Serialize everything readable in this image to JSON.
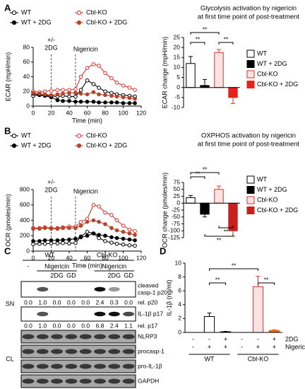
{
  "panel_labels": [
    "A",
    "B",
    "C",
    "D"
  ],
  "chart_data": [
    {
      "type": "line",
      "ylabel": "ECAR (mpH/min)",
      "xlabel": "Time (min)",
      "xlim": [
        0,
        120
      ],
      "xticks": [
        0,
        20,
        40,
        60,
        80,
        100,
        120
      ],
      "ylim": [
        0,
        80
      ],
      "yticks": [
        0,
        20,
        40,
        60,
        80
      ],
      "x": [
        0,
        7,
        13,
        20,
        27,
        33,
        40,
        47,
        53,
        60,
        67,
        73,
        80,
        87,
        93,
        100,
        107,
        113
      ],
      "series": [
        {
          "name": "WT",
          "color": "#000000",
          "marker": "open",
          "values": [
            14,
            15,
            15,
            14,
            13,
            14,
            13,
            13,
            22,
            35,
            30,
            25,
            20,
            18,
            16,
            15,
            14,
            13
          ]
        },
        {
          "name": "WT + 2DG",
          "color": "#000000",
          "marker": "filled",
          "values": [
            17,
            15,
            14,
            12,
            8,
            7,
            7,
            6,
            6,
            6,
            6,
            5,
            5,
            5,
            5,
            4,
            4,
            4
          ]
        },
        {
          "name": "Cbl-KO",
          "color": "#e0312b",
          "marker": "open",
          "values": [
            20,
            19,
            20,
            21,
            22,
            22,
            22,
            23,
            40,
            52,
            57,
            55,
            45,
            38,
            32,
            28,
            25,
            22
          ]
        },
        {
          "name": "Cbl-KO + 2DG",
          "color": "#b5442a",
          "marker": "filled",
          "values": [
            18,
            17,
            16,
            15,
            16,
            17,
            18,
            18,
            17,
            16,
            19,
            16,
            15,
            14,
            13,
            12,
            11,
            10
          ]
        }
      ],
      "annotations": [
        {
          "x": 20,
          "lines": [
            "+/-",
            "2DG"
          ]
        },
        {
          "x": 47,
          "lines": [
            "Nigericin"
          ]
        }
      ]
    },
    {
      "type": "bar",
      "title": [
        "Glycolysis activation by nigericin",
        "at first time point of post-treatment"
      ],
      "ylabel": "ECAR change (mpH/min)",
      "categories": [
        "WT",
        "WT + 2DG",
        "Cbl-KO",
        "Cbl-KO + 2DG"
      ],
      "values": [
        12,
        1,
        17.5,
        -5
      ],
      "errors": [
        3.5,
        3,
        1.5,
        3
      ],
      "colors": [
        "#ffffff",
        "#000000",
        "#fde2e2",
        "#e8221b"
      ],
      "edgecolors": [
        "#000000",
        "#000000",
        "#e0312b",
        "#e8221b"
      ],
      "ylim": [
        -10,
        25
      ],
      "yticks": [
        -10,
        -5,
        0,
        5,
        10,
        15,
        20,
        25
      ],
      "legend": "right",
      "significance": [
        "**",
        "**",
        "**"
      ]
    },
    {
      "type": "line",
      "ylabel": "OCR (pmoles/min)",
      "xlabel": "Time (min)",
      "xlim": [
        0,
        120
      ],
      "xticks": [
        0,
        20,
        40,
        60,
        80,
        100,
        120
      ],
      "ylim": [
        0,
        800
      ],
      "yticks": [
        0,
        200,
        400,
        600,
        800
      ],
      "x": [
        0,
        7,
        13,
        20,
        27,
        33,
        40,
        47,
        53,
        60,
        67,
        73,
        80,
        87,
        93,
        100,
        107,
        113
      ],
      "series": [
        {
          "name": "WT",
          "color": "#000000",
          "marker": "open",
          "values": [
            90,
            95,
            95,
            100,
            100,
            105,
            100,
            105,
            190,
            250,
            230,
            170,
            130,
            110,
            95,
            85,
            75,
            70
          ]
        },
        {
          "name": "WT + 2DG",
          "color": "#000000",
          "marker": "filled",
          "values": [
            130,
            130,
            140,
            140,
            140,
            145,
            150,
            160,
            180,
            200,
            230,
            210,
            200,
            180,
            170,
            160,
            150,
            140
          ]
        },
        {
          "name": "Cbl-KO",
          "color": "#e0312b",
          "marker": "open",
          "values": [
            300,
            300,
            310,
            300,
            300,
            310,
            320,
            320,
            380,
            420,
            600,
            580,
            500,
            470,
            400,
            330,
            280,
            260
          ]
        },
        {
          "name": "Cbl-KO + 2DG",
          "color": "#b5442a",
          "marker": "filled",
          "values": [
            290,
            290,
            300,
            290,
            290,
            300,
            300,
            300,
            330,
            380,
            400,
            380,
            350,
            300,
            270,
            250,
            230,
            210
          ]
        }
      ],
      "annotations": [
        {
          "x": 20,
          "lines": [
            "+/-",
            "2DG"
          ]
        },
        {
          "x": 47,
          "lines": [
            "Nigericin"
          ]
        }
      ]
    },
    {
      "type": "bar",
      "title": [
        "OXPHOS activation by nigericin",
        "at first time point of post-treatment"
      ],
      "ylabel": "OCR change (pmoles/min)",
      "categories": [
        "WT",
        "WT + 2DG",
        "Cbl-KO",
        "Cbl-KO + 2DG"
      ],
      "values": [
        20,
        -40,
        50,
        -100
      ],
      "errors": [
        8,
        10,
        12,
        20
      ],
      "colors": [
        "#ffffff",
        "#000000",
        "#fde2e2",
        "#c8201a"
      ],
      "edgecolors": [
        "#000000",
        "#000000",
        "#e0312b",
        "#c8201a"
      ],
      "ylim": [
        -125,
        75
      ],
      "yticks": [
        -125,
        -100,
        -75,
        -50,
        -25,
        0,
        25,
        50,
        75
      ],
      "legend": "right",
      "significance": [
        "**",
        "**",
        "**",
        "**"
      ]
    },
    {
      "type": "bar",
      "ylabel": "IL-1β (ng/ml)",
      "values": [
        0,
        2.3,
        0.1,
        0,
        6.6,
        0.3
      ],
      "errors": [
        0,
        0.5,
        0.05,
        0,
        1.5,
        0.1
      ],
      "colors": [
        "#ffffff",
        "#ffffff",
        "#000000",
        "#fde2e2",
        "#fde2e2",
        "#e86a1b"
      ],
      "edgecolors": [
        "#000000",
        "#000000",
        "#000000",
        "#e0312b",
        "#e0312b",
        "#e86a1b"
      ],
      "ylim": [
        0,
        10
      ],
      "yticks": [
        0,
        2,
        4,
        6,
        8,
        10
      ],
      "conditions": [
        {
          "name": "2DG",
          "values": [
            "-",
            "-",
            "+",
            "-",
            "-",
            "+"
          ]
        },
        {
          "name": "Nigericin",
          "values": [
            "-",
            "+",
            "+",
            "-",
            "+",
            "+"
          ]
        }
      ],
      "groups": [
        "WT",
        "Cbl-KO"
      ],
      "significance": [
        "**",
        "**",
        "**"
      ]
    }
  ],
  "blot": {
    "groups": [
      "WT",
      "Cbl-KO"
    ],
    "row1": [
      "-",
      "Nigericin",
      "-",
      "Nigericin"
    ],
    "row2": [
      "2DG",
      "GD",
      "2DG",
      "GD"
    ],
    "sn_label": "SN",
    "cl_label": "CL",
    "sn_rows": [
      {
        "label": [
          "cleaved",
          "casp-1 p20"
        ],
        "rel_label": "rel. p20",
        "rel": [
          "0.0",
          "1.0",
          "0.0",
          "0.0",
          "0.0",
          "2.4",
          "0.3",
          "0.0"
        ]
      },
      {
        "label": [
          "IL-1β p17"
        ],
        "rel_label": "rel. p17",
        "rel": [
          "0.0",
          "1.0",
          "0.0",
          "0.0",
          "0.0",
          "6.8",
          "2.4",
          "1.1"
        ]
      }
    ],
    "cl_rows": [
      "NLRP3",
      "procasp-1",
      "pro-IL-1β",
      "GAPDH"
    ]
  }
}
